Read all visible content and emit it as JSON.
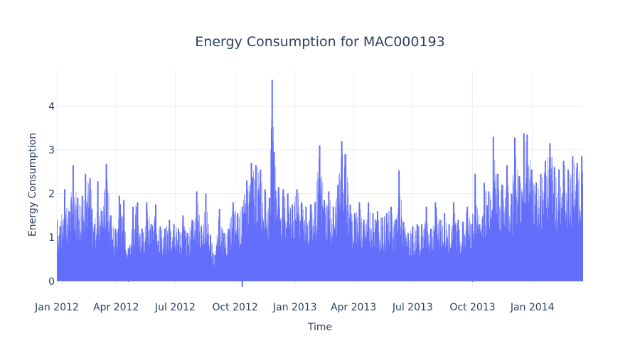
{
  "chart_data": {
    "type": "line",
    "title": "Energy Consumption for MAC000193",
    "xlabel": "Time",
    "ylabel": "Energy Consumption",
    "xlim": [
      "2012-01-01",
      "2014-03-20"
    ],
    "ylim": [
      -0.15,
      4.8
    ],
    "x_ticks": [
      "2012-01-01",
      "2012-04-01",
      "2012-07-01",
      "2012-10-01",
      "2013-01-01",
      "2013-04-01",
      "2013-07-01",
      "2013-10-01",
      "2014-01-01"
    ],
    "x_tick_labels": [
      "Jan 2012",
      "Apr 2012",
      "Jul 2012",
      "Oct 2012",
      "Jan 2013",
      "Apr 2013",
      "Jul 2013",
      "Oct 2013",
      "Jan 2014"
    ],
    "y_ticks": [
      0,
      1,
      2,
      3,
      4
    ],
    "y_tick_labels": [
      "0",
      "1",
      "2",
      "3",
      "4"
    ],
    "grid": true,
    "legend": "none",
    "series": [
      {
        "color": "#636efa",
        "points": [
          [
            "2012-01-01",
            1.4
          ],
          [
            "2012-01-06",
            1.25
          ],
          [
            "2012-01-13",
            2.1
          ],
          [
            "2012-01-20",
            1.6
          ],
          [
            "2012-01-26",
            2.65
          ],
          [
            "2012-02-02",
            1.9
          ],
          [
            "2012-02-09",
            1.95
          ],
          [
            "2012-02-14",
            2.45
          ],
          [
            "2012-02-21",
            2.35
          ],
          [
            "2012-02-28",
            1.3
          ],
          [
            "2012-03-04",
            2.28
          ],
          [
            "2012-03-10",
            1.6
          ],
          [
            "2012-03-17",
            2.68
          ],
          [
            "2012-03-24",
            1.5
          ],
          [
            "2012-03-31",
            1.2
          ],
          [
            "2012-04-06",
            1.95
          ],
          [
            "2012-04-13",
            1.85
          ],
          [
            "2012-04-20",
            0.75
          ],
          [
            "2012-04-27",
            1.7
          ],
          [
            "2012-05-04",
            1.8
          ],
          [
            "2012-05-11",
            1.2
          ],
          [
            "2012-05-18",
            1.8
          ],
          [
            "2012-05-25",
            1.3
          ],
          [
            "2012-06-01",
            1.75
          ],
          [
            "2012-06-08",
            1.25
          ],
          [
            "2012-06-15",
            1.2
          ],
          [
            "2012-06-22",
            1.4
          ],
          [
            "2012-06-29",
            1.3
          ],
          [
            "2012-07-06",
            1.2
          ],
          [
            "2012-07-13",
            1.5
          ],
          [
            "2012-07-20",
            1.1
          ],
          [
            "2012-07-27",
            1.4
          ],
          [
            "2012-08-03",
            2.05
          ],
          [
            "2012-08-10",
            1.25
          ],
          [
            "2012-08-17",
            2.0
          ],
          [
            "2012-08-24",
            1.05
          ],
          [
            "2012-08-31",
            0.6
          ],
          [
            "2012-09-07",
            1.65
          ],
          [
            "2012-09-14",
            1.1
          ],
          [
            "2012-09-21",
            1.2
          ],
          [
            "2012-09-28",
            1.8
          ],
          [
            "2012-10-05",
            1.55
          ],
          [
            "2012-10-12",
            1.7
          ],
          [
            "2012-10-19",
            2.3
          ],
          [
            "2012-10-26",
            2.7
          ],
          [
            "2012-11-02",
            2.65
          ],
          [
            "2012-11-09",
            2.55
          ],
          [
            "2012-11-16",
            2.1
          ],
          [
            "2012-11-23",
            1.9
          ],
          [
            "2012-11-27",
            4.6
          ],
          [
            "2012-11-30",
            2.95
          ],
          [
            "2012-12-07",
            2.15
          ],
          [
            "2012-12-14",
            2.1
          ],
          [
            "2012-12-21",
            2.0
          ],
          [
            "2012-12-28",
            1.75
          ],
          [
            "2013-01-04",
            2.1
          ],
          [
            "2013-01-11",
            1.8
          ],
          [
            "2013-01-18",
            1.7
          ],
          [
            "2013-01-25",
            1.75
          ],
          [
            "2013-02-01",
            1.8
          ],
          [
            "2013-02-08",
            3.1
          ],
          [
            "2013-02-15",
            1.85
          ],
          [
            "2013-02-22",
            2.05
          ],
          [
            "2013-03-01",
            1.7
          ],
          [
            "2013-03-08",
            2.2
          ],
          [
            "2013-03-14",
            3.2
          ],
          [
            "2013-03-20",
            2.9
          ],
          [
            "2013-03-27",
            1.75
          ],
          [
            "2013-04-03",
            1.55
          ],
          [
            "2013-04-10",
            1.8
          ],
          [
            "2013-04-17",
            1.4
          ],
          [
            "2013-04-24",
            1.8
          ],
          [
            "2013-05-01",
            1.55
          ],
          [
            "2013-05-08",
            1.6
          ],
          [
            "2013-05-15",
            1.45
          ],
          [
            "2013-05-22",
            1.55
          ],
          [
            "2013-05-29",
            1.7
          ],
          [
            "2013-06-05",
            1.4
          ],
          [
            "2013-06-10",
            2.53
          ],
          [
            "2013-06-17",
            1.35
          ],
          [
            "2013-06-24",
            1.1
          ],
          [
            "2013-07-01",
            1.25
          ],
          [
            "2013-07-08",
            1.3
          ],
          [
            "2013-07-15",
            1.3
          ],
          [
            "2013-07-22",
            1.7
          ],
          [
            "2013-07-29",
            1.2
          ],
          [
            "2013-08-05",
            1.8
          ],
          [
            "2013-08-12",
            1.4
          ],
          [
            "2013-08-19",
            1.55
          ],
          [
            "2013-08-26",
            1.3
          ],
          [
            "2013-09-02",
            1.8
          ],
          [
            "2013-09-09",
            1.4
          ],
          [
            "2013-09-16",
            1.35
          ],
          [
            "2013-09-23",
            1.7
          ],
          [
            "2013-09-30",
            1.3
          ],
          [
            "2013-10-05",
            2.45
          ],
          [
            "2013-10-12",
            1.3
          ],
          [
            "2013-10-19",
            2.25
          ],
          [
            "2013-10-26",
            2.05
          ],
          [
            "2013-11-02",
            3.3
          ],
          [
            "2013-11-09",
            2.45
          ],
          [
            "2013-11-16",
            2.2
          ],
          [
            "2013-11-23",
            2.65
          ],
          [
            "2013-11-30",
            2.0
          ],
          [
            "2013-12-05",
            3.28
          ],
          [
            "2013-12-12",
            2.4
          ],
          [
            "2013-12-19",
            3.38
          ],
          [
            "2013-12-24",
            3.35
          ],
          [
            "2013-12-31",
            2.55
          ],
          [
            "2014-01-07",
            2.25
          ],
          [
            "2014-01-14",
            2.45
          ],
          [
            "2014-01-21",
            2.75
          ],
          [
            "2014-01-28",
            3.15
          ],
          [
            "2014-02-04",
            2.6
          ],
          [
            "2014-02-11",
            2.55
          ],
          [
            "2014-02-18",
            2.75
          ],
          [
            "2014-02-25",
            2.55
          ],
          [
            "2014-03-04",
            2.85
          ],
          [
            "2014-03-11",
            2.7
          ],
          [
            "2014-03-18",
            2.85
          ]
        ]
      }
    ]
  }
}
